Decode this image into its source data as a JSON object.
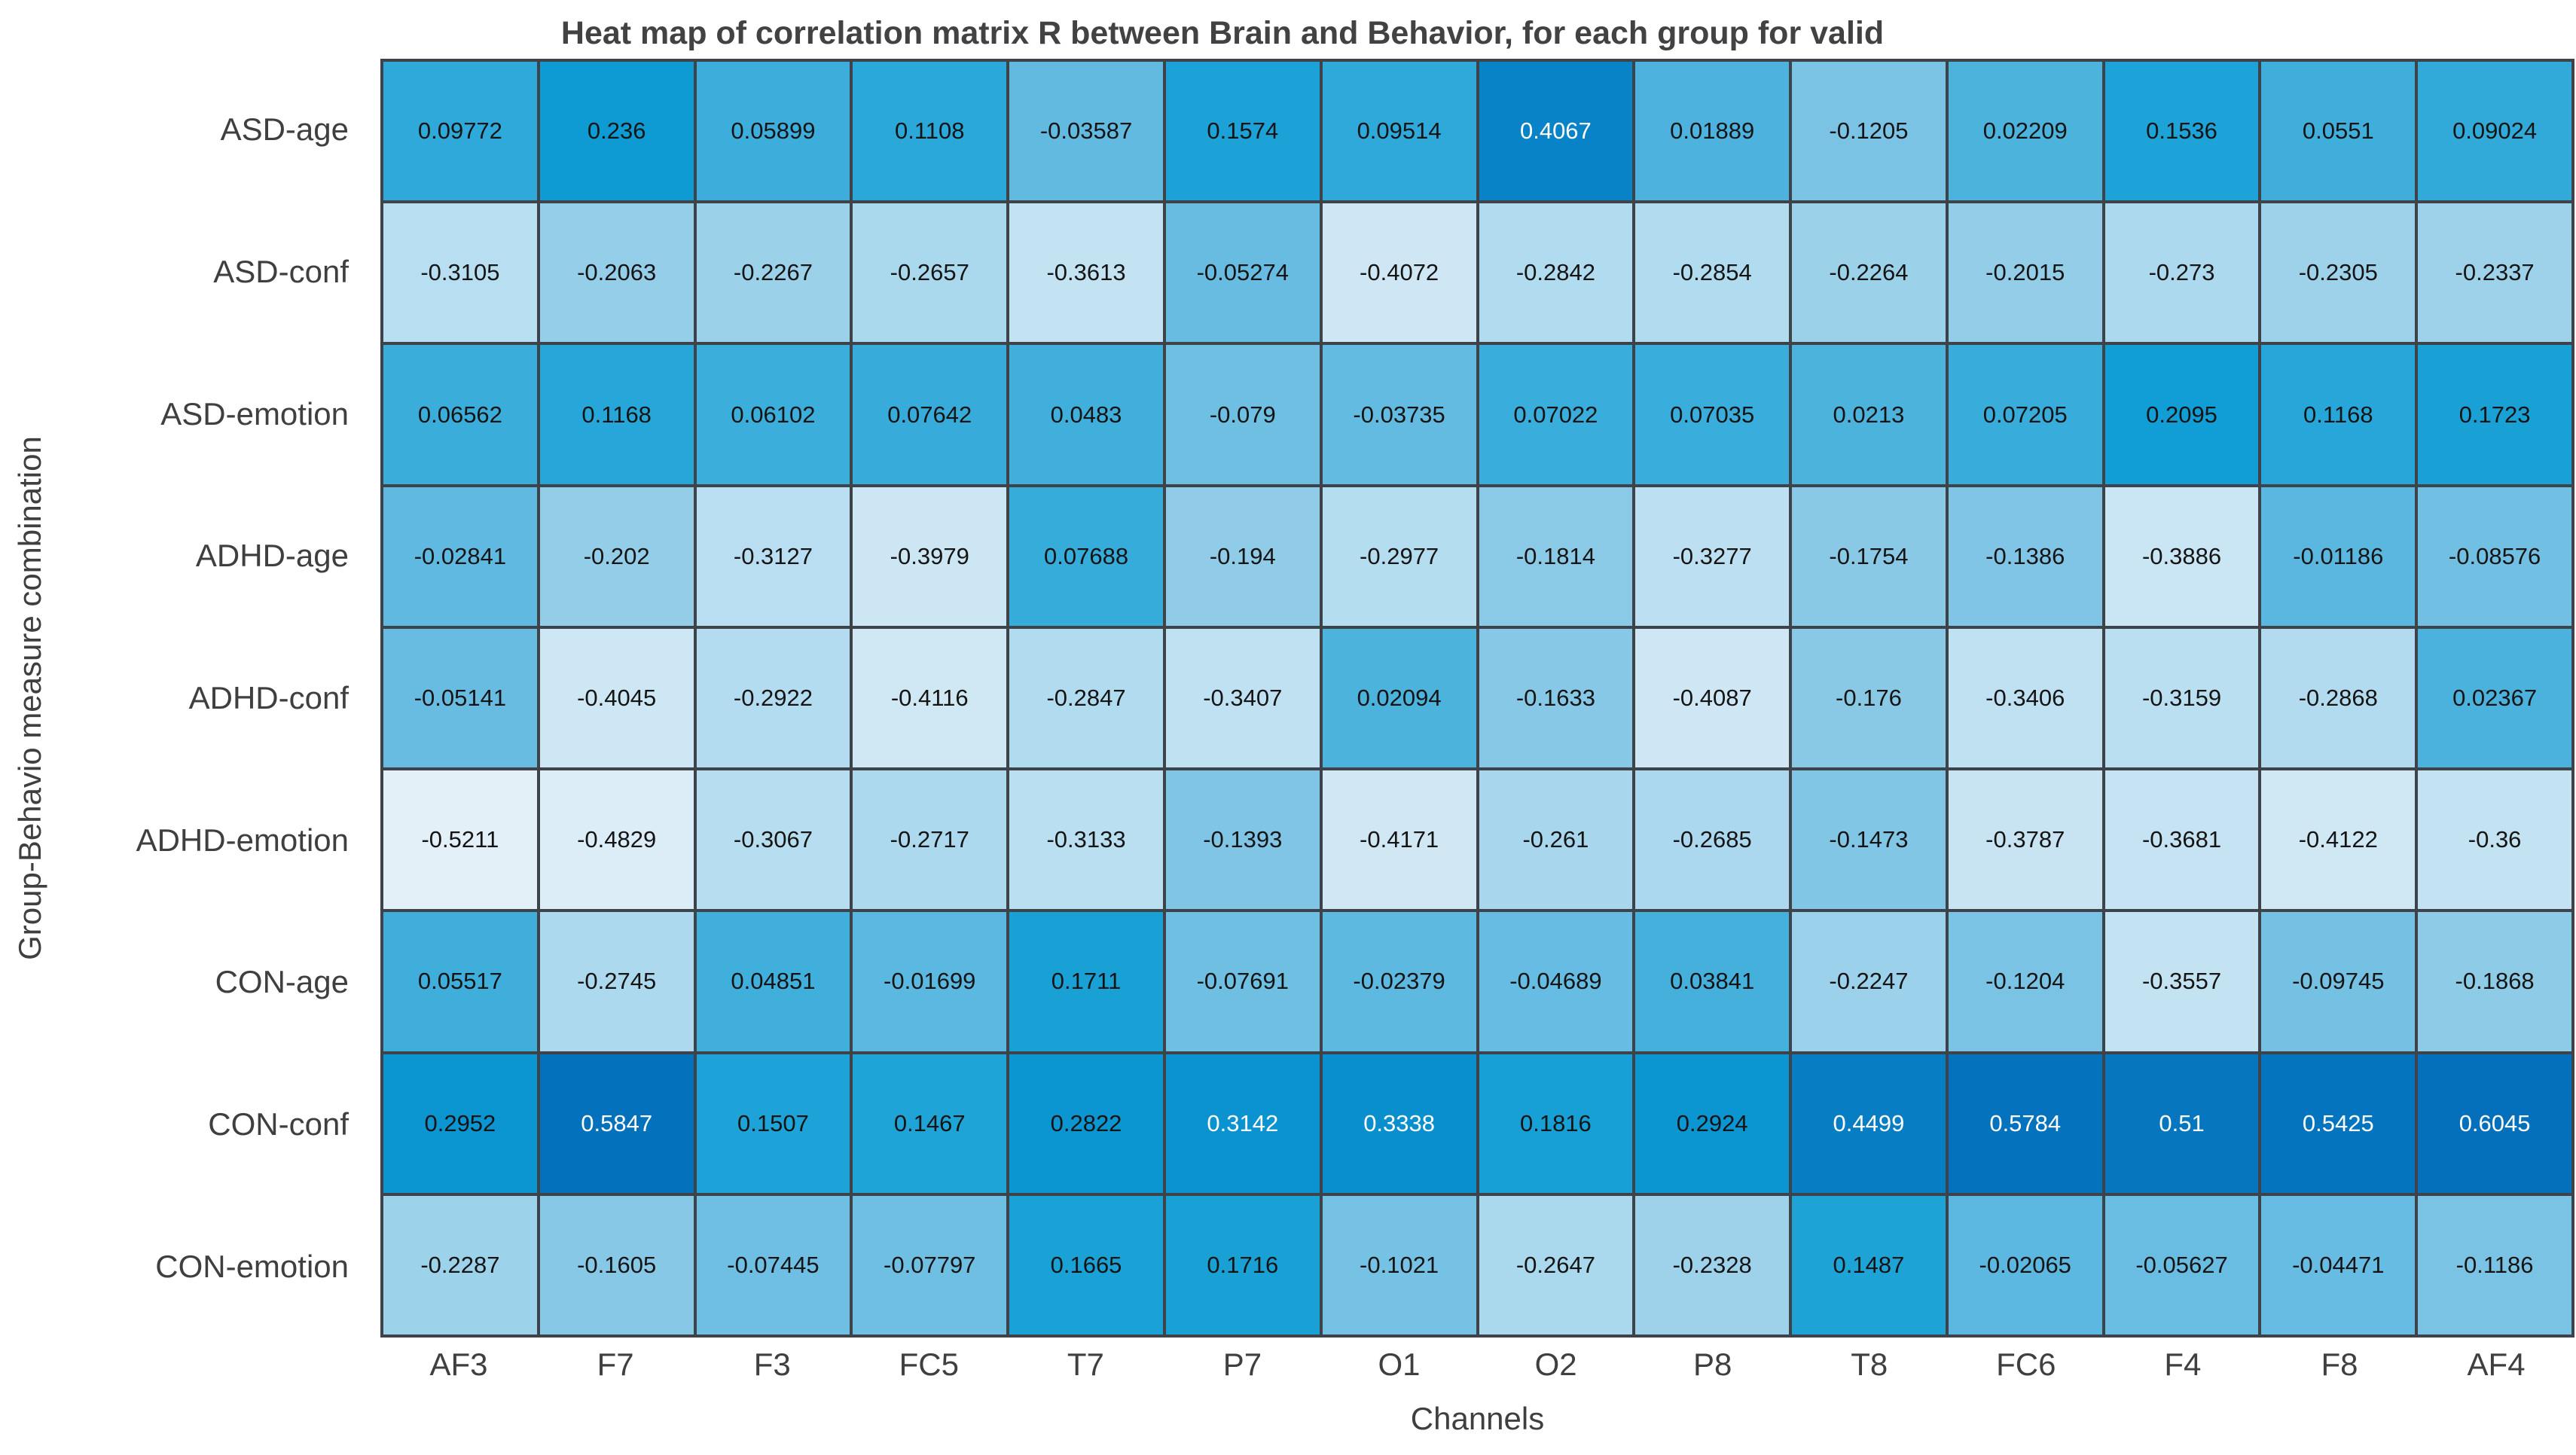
{
  "chart_data": {
    "type": "heatmap",
    "title": "Heat map of correlation matrix R between Brain and Behavior, for each group for valid",
    "xlabel": "Channels",
    "ylabel": "Group-Behavio measure combination",
    "columns": [
      "AF3",
      "F7",
      "F3",
      "FC5",
      "T7",
      "P7",
      "O1",
      "O2",
      "P8",
      "T8",
      "FC6",
      "F4",
      "F8",
      "AF4"
    ],
    "rows": [
      "ASD-age",
      "ASD-conf",
      "ASD-emotion",
      "ADHD-age",
      "ADHD-conf",
      "ADHD-emotion",
      "CON-age",
      "CON-conf",
      "CON-emotion"
    ],
    "values": [
      [
        0.09772,
        0.236,
        0.05899,
        0.1108,
        -0.03587,
        0.1574,
        0.09514,
        0.4067,
        0.01889,
        -0.1205,
        0.02209,
        0.1536,
        0.0551,
        0.09024
      ],
      [
        -0.3105,
        -0.2063,
        -0.2267,
        -0.2657,
        -0.3613,
        -0.05274,
        -0.4072,
        -0.2842,
        -0.2854,
        -0.2264,
        -0.2015,
        -0.273,
        -0.2305,
        -0.2337
      ],
      [
        0.06562,
        0.1168,
        0.06102,
        0.07642,
        0.0483,
        -0.079,
        -0.03735,
        0.07022,
        0.07035,
        0.0213,
        0.07205,
        0.2095,
        0.1168,
        0.1723
      ],
      [
        -0.02841,
        -0.202,
        -0.3127,
        -0.3979,
        0.07688,
        -0.194,
        -0.2977,
        -0.1814,
        -0.3277,
        -0.1754,
        -0.1386,
        -0.3886,
        -0.01186,
        -0.08576
      ],
      [
        -0.05141,
        -0.4045,
        -0.2922,
        -0.4116,
        -0.2847,
        -0.3407,
        0.02094,
        -0.1633,
        -0.4087,
        -0.176,
        -0.3406,
        -0.3159,
        -0.2868,
        0.02367
      ],
      [
        -0.5211,
        -0.4829,
        -0.3067,
        -0.2717,
        -0.3133,
        -0.1393,
        -0.4171,
        -0.261,
        -0.2685,
        -0.1473,
        -0.3787,
        -0.3681,
        -0.4122,
        -0.36
      ],
      [
        0.05517,
        -0.2745,
        0.04851,
        -0.01699,
        0.1711,
        -0.07691,
        -0.02379,
        -0.04689,
        0.03841,
        -0.2247,
        -0.1204,
        -0.3557,
        -0.09745,
        -0.1868
      ],
      [
        0.2952,
        0.5847,
        0.1507,
        0.1467,
        0.2822,
        0.3142,
        0.3338,
        0.1816,
        0.2924,
        0.4499,
        0.5784,
        0.51,
        0.5425,
        0.6045
      ],
      [
        -0.2287,
        -0.1605,
        -0.07445,
        -0.07797,
        0.1665,
        0.1716,
        -0.1021,
        -0.2647,
        -0.2328,
        0.1487,
        -0.02065,
        -0.05627,
        -0.04471,
        -0.1186
      ]
    ],
    "value_min": -0.5211,
    "value_max": 0.6045,
    "grid_on": true,
    "legend_position": "none",
    "colormap_stops": [
      [
        0.0,
        "#e3f0f8"
      ],
      [
        0.1,
        "#cfe7f4"
      ],
      [
        0.2,
        "#b5ddf0"
      ],
      [
        0.3,
        "#8ccae6"
      ],
      [
        0.42,
        "#67bce2"
      ],
      [
        0.5,
        "#44b0dc"
      ],
      [
        0.58,
        "#21a5d8"
      ],
      [
        0.66,
        "#0f9cd4"
      ],
      [
        0.74,
        "#0a93d0"
      ],
      [
        0.82,
        "#0984c8"
      ],
      [
        0.9,
        "#0678c0"
      ],
      [
        1.0,
        "#0470bc"
      ]
    ],
    "white_text_threshold": 0.73,
    "cell_border_color": "#3d4348",
    "text_color_dark": "#141414",
    "text_color_light": "#ffffff"
  }
}
